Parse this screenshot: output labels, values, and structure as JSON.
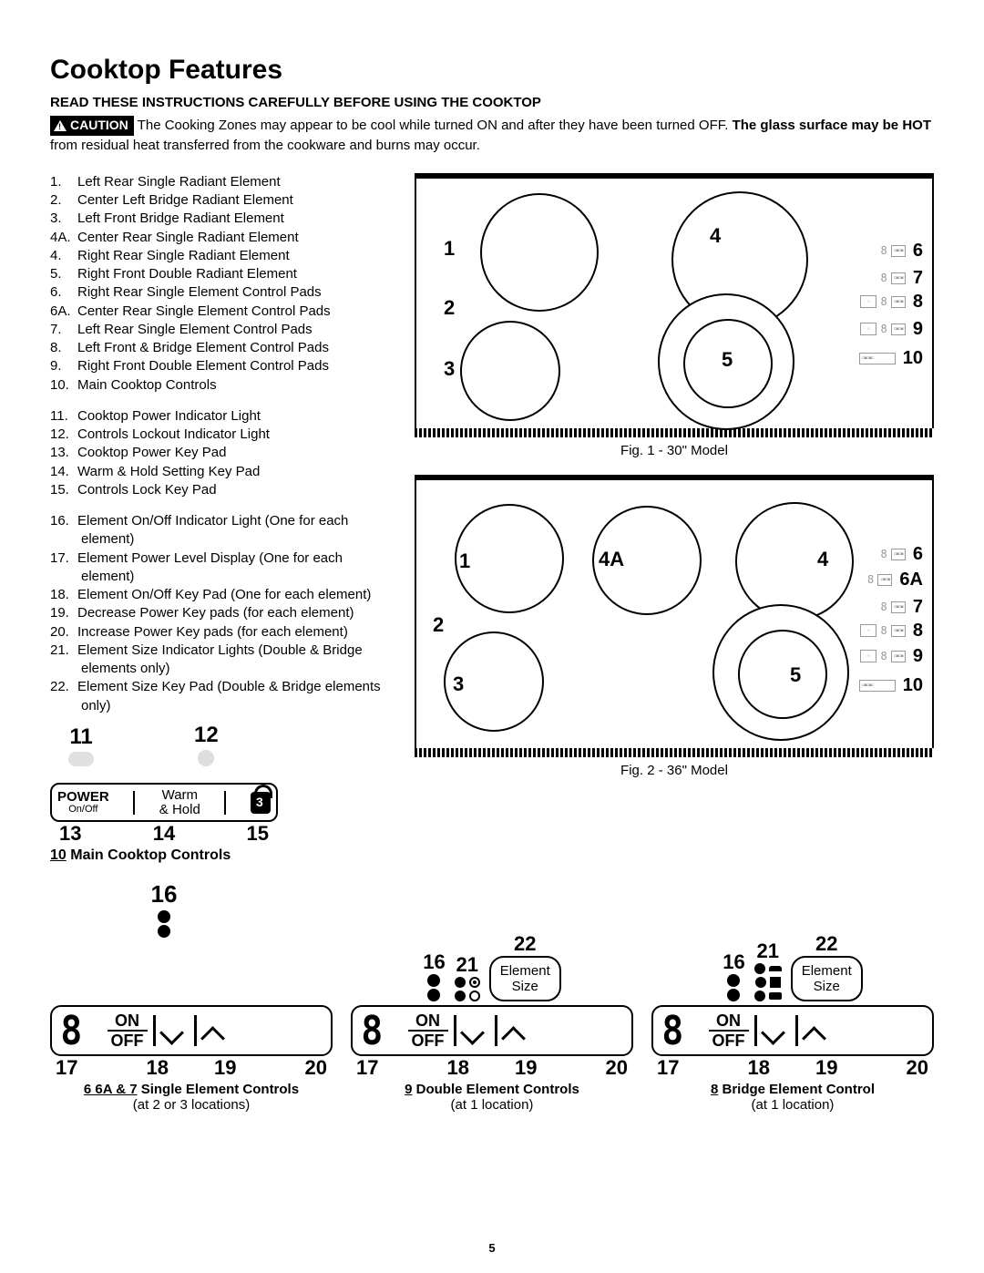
{
  "title": "Cooktop Features",
  "subtitle": "READ THESE INSTRUCTIONS CAREFULLY BEFORE USING THE COOKTOP",
  "caution_badge": "CAUTION",
  "caution_text_1": " The Cooking Zones may appear to be cool while turned ON and after they have been turned OFF. ",
  "caution_bold": "The glass surface may be HOT",
  "caution_text_2": " from residual heat transferred from the cookware and burns may occur.",
  "features_a": [
    {
      "n": "1.",
      "t": "Left Rear Single Radiant Element"
    },
    {
      "n": "2.",
      "t": "Center Left Bridge Radiant Element"
    },
    {
      "n": "3.",
      "t": "Left Front Bridge Radiant Element"
    },
    {
      "n": "4A.",
      "t": "Center Rear Single Radiant Element"
    },
    {
      "n": "4.",
      "t": "Right Rear Single Radiant Element"
    },
    {
      "n": "5.",
      "t": "Right Front Double Radiant Element"
    },
    {
      "n": "6.",
      "t": "Right Rear Single Element Control Pads"
    },
    {
      "n": "6A.",
      "t": "Center Rear Single Element Control Pads"
    },
    {
      "n": "7.",
      "t": "Left Rear Single Element Control Pads"
    },
    {
      "n": "8.",
      "t": "Left Front & Bridge Element Control Pads"
    },
    {
      "n": "9.",
      "t": "Right Front Double Element Control Pads"
    },
    {
      "n": "10.",
      "t": "Main Cooktop Controls"
    }
  ],
  "features_b": [
    {
      "n": "11.",
      "t": "Cooktop Power Indicator Light"
    },
    {
      "n": "12.",
      "t": "Controls Lockout Indicator Light"
    },
    {
      "n": "13.",
      "t": "Cooktop Power Key Pad"
    },
    {
      "n": "14.",
      "t": "Warm & Hold Setting Key Pad"
    },
    {
      "n": "15.",
      "t": "Controls Lock Key Pad"
    }
  ],
  "features_c": [
    {
      "n": "16.",
      "t": "Element On/Off Indicator Light (One for each element)"
    },
    {
      "n": "17.",
      "t": "Element Power Level Display (One for each element)"
    },
    {
      "n": "18.",
      "t": "Element On/Off Key Pad (One for each element)"
    },
    {
      "n": "19.",
      "t": "Decrease Power Key pads (for each element)"
    },
    {
      "n": "20.",
      "t": "Increase Power Key pads (for each element)"
    },
    {
      "n": "21.",
      "t": "Element Size Indicator Lights (Double & Bridge elements only)"
    },
    {
      "n": "22.",
      "t": "Element Size Key Pad (Double & Bridge elements only)"
    }
  ],
  "fig1_caption": "Fig. 1 - 30\" Model",
  "fig2_caption": "Fig. 2 - 36\" Model",
  "labels": {
    "n1": "1",
    "n2": "2",
    "n3": "3",
    "n4": "4",
    "n4A": "4A",
    "n5": "5",
    "n6": "6",
    "n6A": "6A",
    "n7": "7",
    "n8": "8",
    "n9": "9",
    "n10": "10",
    "n11": "11",
    "n12": "12",
    "n13": "13",
    "n14": "14",
    "n15": "15",
    "n16": "16",
    "n17": "17",
    "n18": "18",
    "n19": "19",
    "n20": "20",
    "n21": "21",
    "n22": "22"
  },
  "main_ctrl": {
    "power": "POWER",
    "onoff": "On/Off",
    "warm": "Warm",
    "hold": "& Hold",
    "caption_pre": "10",
    "caption": " Main Cooktop Controls"
  },
  "ec": {
    "on": "ON",
    "off": "OFF",
    "digit": "8",
    "size_label": "Element\nSize"
  },
  "cap_single_pre": "6 6A & 7",
  "cap_single": " Single Element Controls",
  "cap_single_sub": "(at 2 or 3 locations)",
  "cap_double_pre": "9",
  "cap_double": " Double Element Controls",
  "cap_double_sub": "(at 1 location)",
  "cap_bridge_pre": "8",
  "cap_bridge": " Bridge Element Control",
  "cap_bridge_sub": "(at 1 location)",
  "page": "5"
}
